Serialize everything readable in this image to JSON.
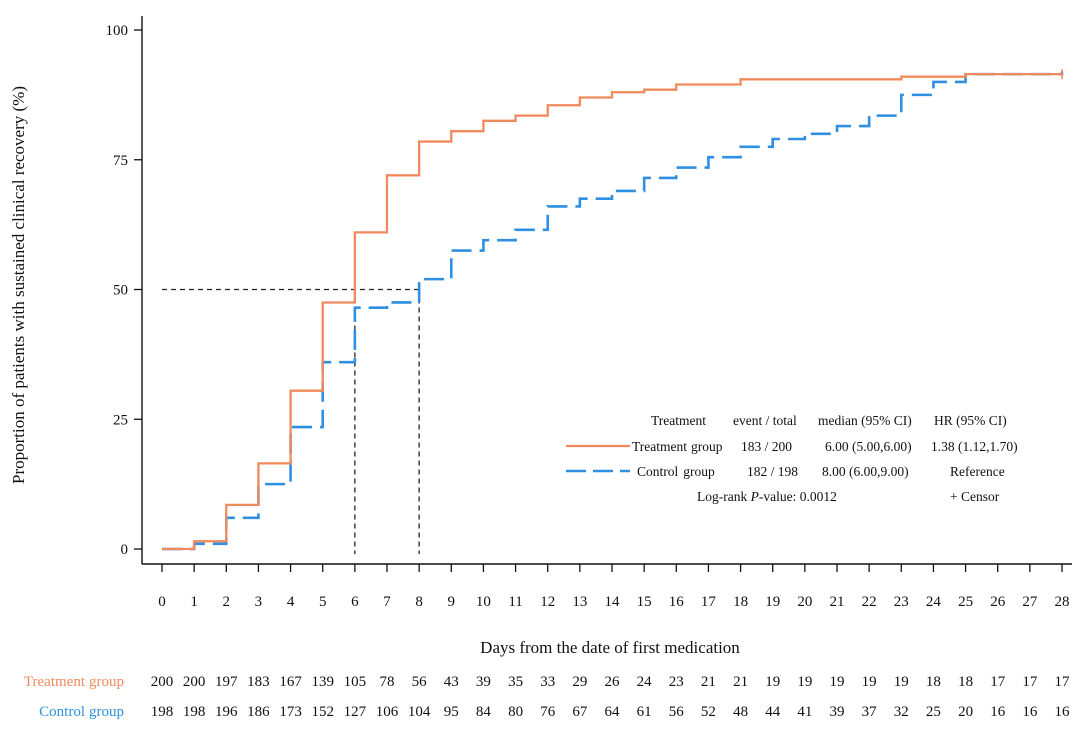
{
  "chart_data": {
    "type": "line",
    "subtype": "kaplan-meier-step",
    "xlabel": "Days from the date of first medication",
    "ylabel": "Proportion of patients with sustained clinical recovery (%)",
    "xlim": [
      0,
      28
    ],
    "ylim": [
      0,
      100
    ],
    "x_ticks": [
      "0",
      "1",
      "2",
      "3",
      "4",
      "5",
      "6",
      "7",
      "8",
      "9",
      "10",
      "11",
      "12",
      "13",
      "14",
      "15",
      "16",
      "17",
      "18",
      "19",
      "20",
      "21",
      "22",
      "23",
      "24",
      "25",
      "26",
      "27",
      "28"
    ],
    "y_ticks": [
      "0",
      "25",
      "50",
      "75",
      "100"
    ],
    "series": [
      {
        "name": "Treatment",
        "color": "#F08A5D",
        "style": "solid",
        "steps": [
          [
            0,
            0
          ],
          [
            1,
            1.5
          ],
          [
            2,
            8.5
          ],
          [
            3,
            16.5
          ],
          [
            4,
            30.5
          ],
          [
            5,
            47.5
          ],
          [
            6,
            61
          ],
          [
            7,
            72
          ],
          [
            8,
            78.5
          ],
          [
            9,
            80.5
          ],
          [
            10,
            82.5
          ],
          [
            11,
            83.5
          ],
          [
            12,
            85.5
          ],
          [
            13,
            87
          ],
          [
            14,
            88
          ],
          [
            15,
            88.5
          ],
          [
            16,
            89.5
          ],
          [
            17,
            89.5
          ],
          [
            18,
            90.5
          ],
          [
            19,
            90.5
          ],
          [
            20,
            90.5
          ],
          [
            21,
            90.5
          ],
          [
            22,
            90.5
          ],
          [
            23,
            91
          ],
          [
            24,
            91
          ],
          [
            25,
            91.5
          ],
          [
            26,
            91.5
          ],
          [
            27,
            91.5
          ],
          [
            28,
            91.5
          ]
        ]
      },
      {
        "name": "Control",
        "color": "#2F8FE3",
        "style": "dashed",
        "steps": [
          [
            0,
            0
          ],
          [
            1,
            1
          ],
          [
            2,
            6
          ],
          [
            3,
            12.5
          ],
          [
            4,
            23.5
          ],
          [
            5,
            36
          ],
          [
            6,
            46.5
          ],
          [
            7,
            47.5
          ],
          [
            8,
            52
          ],
          [
            9,
            57.5
          ],
          [
            10,
            59.5
          ],
          [
            11,
            61.5
          ],
          [
            12,
            66
          ],
          [
            13,
            67.5
          ],
          [
            14,
            69
          ],
          [
            15,
            71.5
          ],
          [
            16,
            73.5
          ],
          [
            17,
            75.5
          ],
          [
            18,
            77.5
          ],
          [
            19,
            79
          ],
          [
            20,
            80
          ],
          [
            21,
            81.5
          ],
          [
            22,
            83.5
          ],
          [
            23,
            87.5
          ],
          [
            24,
            90
          ],
          [
            25,
            91.5
          ],
          [
            26,
            91.5
          ],
          [
            27,
            91.5
          ],
          [
            28,
            92
          ]
        ]
      }
    ],
    "reference_lines": {
      "median_y": 50,
      "treatment_median_x": 6,
      "control_median_x": 8
    },
    "legend": {
      "placement": "center-right",
      "header": {
        "col1": "Treatment",
        "col2": "event /  total",
        "col3": "median (95% CI)",
        "col4": "HR (95% CI)"
      },
      "rows": [
        {
          "group": "Treatment",
          "suffix": "group",
          "events": "183 / 200",
          "median": "6.00 (5.00,6.00)",
          "hr": "1.38 (1.12,1.70)"
        },
        {
          "group": "Control",
          "suffix": "group",
          "events": "182 / 198",
          "median": "8.00 (6.00,9.00)",
          "hr": "Reference"
        }
      ],
      "pvalue_prefix": "Log-rank ",
      "pvalue_italic": "P",
      "pvalue_text": "-value: 0.0012",
      "censor_text": "+  Censor"
    },
    "risk_table": [
      {
        "group": "Treatment",
        "suffix": "group",
        "values": [
          200,
          200,
          197,
          183,
          167,
          139,
          105,
          78,
          56,
          43,
          39,
          35,
          33,
          29,
          26,
          24,
          23,
          21,
          21,
          19,
          19,
          19,
          19,
          19,
          18,
          18,
          17,
          17,
          17
        ]
      },
      {
        "group": "Control",
        "suffix": "group",
        "values": [
          198,
          198,
          196,
          186,
          173,
          152,
          127,
          106,
          104,
          95,
          84,
          80,
          76,
          67,
          64,
          61,
          56,
          52,
          48,
          44,
          41,
          39,
          37,
          32,
          25,
          20,
          16,
          16,
          16
        ]
      }
    ]
  }
}
